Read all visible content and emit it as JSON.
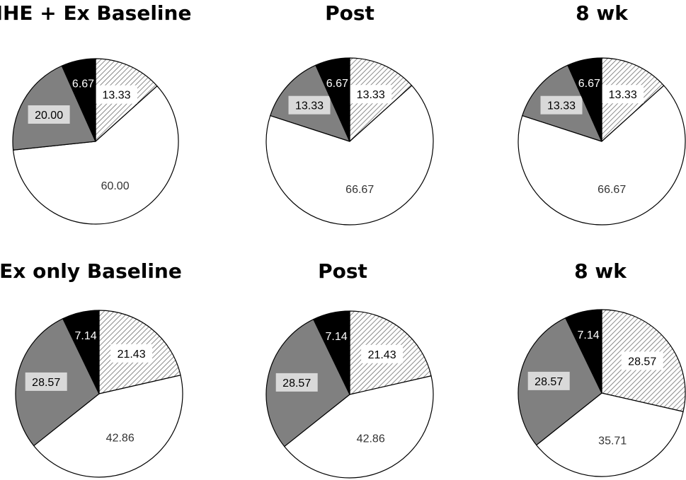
{
  "colors": {
    "black": "#000000",
    "hatched": "#d9d9d9",
    "white": "#ffffff",
    "gray": "#808080",
    "outline": "#000000"
  },
  "chart_data": [
    {
      "type": "pie",
      "title": "IHE + Ex Baseline",
      "slices": [
        {
          "value": 13.33,
          "label": "13.33",
          "fill": "hatched"
        },
        {
          "value": 60.0,
          "label": "60.00",
          "fill": "white"
        },
        {
          "value": 20.0,
          "label": "20.00",
          "fill": "gray"
        },
        {
          "value": 6.67,
          "label": "6.67",
          "fill": "black"
        }
      ]
    },
    {
      "type": "pie",
      "title": "Post",
      "slices": [
        {
          "value": 13.33,
          "label": "13.33",
          "fill": "hatched"
        },
        {
          "value": 66.67,
          "label": "66.67",
          "fill": "white"
        },
        {
          "value": 13.33,
          "label": "13.33",
          "fill": "gray"
        },
        {
          "value": 6.67,
          "label": "6.67",
          "fill": "black"
        }
      ]
    },
    {
      "type": "pie",
      "title": "8 wk",
      "slices": [
        {
          "value": 13.33,
          "label": "13.33",
          "fill": "hatched"
        },
        {
          "value": 66.67,
          "label": "66.67",
          "fill": "white"
        },
        {
          "value": 13.33,
          "label": "13.33",
          "fill": "gray"
        },
        {
          "value": 6.67,
          "label": "6.67",
          "fill": "black"
        }
      ]
    },
    {
      "type": "pie",
      "title": "Ex only Baseline",
      "slices": [
        {
          "value": 21.43,
          "label": "21.43",
          "fill": "hatched"
        },
        {
          "value": 42.86,
          "label": "42.86",
          "fill": "white"
        },
        {
          "value": 28.57,
          "label": "28.57",
          "fill": "gray"
        },
        {
          "value": 7.14,
          "label": "7.14",
          "fill": "black"
        }
      ]
    },
    {
      "type": "pie",
      "title": "Post",
      "slices": [
        {
          "value": 21.43,
          "label": "21.43",
          "fill": "hatched"
        },
        {
          "value": 42.86,
          "label": "42.86",
          "fill": "white"
        },
        {
          "value": 28.57,
          "label": "28.57",
          "fill": "gray"
        },
        {
          "value": 7.14,
          "label": "7.14",
          "fill": "black"
        }
      ]
    },
    {
      "type": "pie",
      "title": "8 wk",
      "slices": [
        {
          "value": 28.57,
          "label": "28.57",
          "fill": "hatched"
        },
        {
          "value": 35.71,
          "label": "35.71",
          "fill": "white"
        },
        {
          "value": 28.57,
          "label": "28.57",
          "fill": "gray"
        },
        {
          "value": 7.14,
          "label": "7.14",
          "fill": "black"
        }
      ]
    }
  ]
}
